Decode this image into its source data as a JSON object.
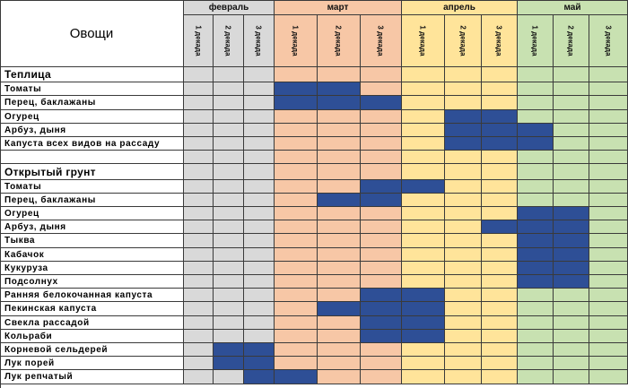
{
  "table": {
    "title": "Овощи",
    "months": [
      {
        "name": "февраль",
        "decades": [
          "1 декада",
          "2 декада",
          "3 декада"
        ],
        "color": "#d9d9d9"
      },
      {
        "name": "март",
        "decades": [
          "1 декада",
          "2 декада",
          "3 декада"
        ],
        "color": "#f7c7a6"
      },
      {
        "name": "апрель",
        "decades": [
          "1 декада",
          "2 декада",
          "3 декада"
        ],
        "color": "#ffe49a"
      },
      {
        "name": "май",
        "decades": [
          "1 декада",
          "2 декада",
          "3 декада"
        ],
        "color": "#c8e1b1"
      }
    ],
    "filled_color": "#2e4f96",
    "sections": [
      {
        "name": "Теплица",
        "rows": [
          {
            "label": "Томаты",
            "sowing": [
              false,
              false,
              false,
              true,
              true,
              false,
              false,
              false,
              false,
              false,
              false,
              false
            ]
          },
          {
            "label": "Перец, баклажаны",
            "sowing": [
              false,
              false,
              false,
              true,
              true,
              true,
              false,
              false,
              false,
              false,
              false,
              false
            ]
          },
          {
            "label": "Огурец",
            "sowing": [
              false,
              false,
              false,
              false,
              false,
              false,
              false,
              true,
              true,
              false,
              false,
              false
            ]
          },
          {
            "label": "Арбуз, дыня",
            "sowing": [
              false,
              false,
              false,
              false,
              false,
              false,
              false,
              true,
              true,
              true,
              false,
              false
            ]
          },
          {
            "label": "Капуста всех видов на рассаду",
            "sowing": [
              false,
              false,
              false,
              false,
              false,
              false,
              false,
              true,
              true,
              true,
              false,
              false
            ]
          }
        ]
      },
      {
        "name": "Открытый грунт",
        "rows": [
          {
            "label": "Томаты",
            "sowing": [
              false,
              false,
              false,
              false,
              false,
              true,
              true,
              false,
              false,
              false,
              false,
              false
            ]
          },
          {
            "label": "Перец, баклажаны",
            "sowing": [
              false,
              false,
              false,
              false,
              true,
              true,
              false,
              false,
              false,
              false,
              false,
              false
            ]
          },
          {
            "label": "Огурец",
            "sowing": [
              false,
              false,
              false,
              false,
              false,
              false,
              false,
              false,
              false,
              true,
              true,
              false
            ]
          },
          {
            "label": "Арбуз, дыня",
            "sowing": [
              false,
              false,
              false,
              false,
              false,
              false,
              false,
              false,
              true,
              true,
              true,
              false
            ]
          },
          {
            "label": "Тыква",
            "sowing": [
              false,
              false,
              false,
              false,
              false,
              false,
              false,
              false,
              false,
              true,
              true,
              false
            ]
          },
          {
            "label": "Кабачок",
            "sowing": [
              false,
              false,
              false,
              false,
              false,
              false,
              false,
              false,
              false,
              true,
              true,
              false
            ]
          },
          {
            "label": "Кукуруза",
            "sowing": [
              false,
              false,
              false,
              false,
              false,
              false,
              false,
              false,
              false,
              true,
              true,
              false
            ]
          },
          {
            "label": "Подсолнух",
            "sowing": [
              false,
              false,
              false,
              false,
              false,
              false,
              false,
              false,
              false,
              true,
              true,
              false
            ]
          },
          {
            "label": "Ранняя белокочанная капуста",
            "sowing": [
              false,
              false,
              false,
              false,
              false,
              true,
              true,
              false,
              false,
              false,
              false,
              false
            ]
          },
          {
            "label": "Пекинская капуста",
            "sowing": [
              false,
              false,
              false,
              false,
              true,
              true,
              true,
              false,
              false,
              false,
              false,
              false
            ]
          },
          {
            "label": "Свекла рассадой",
            "sowing": [
              false,
              false,
              false,
              false,
              false,
              true,
              true,
              false,
              false,
              false,
              false,
              false
            ]
          },
          {
            "label": "Кольраби",
            "sowing": [
              false,
              false,
              false,
              false,
              false,
              true,
              true,
              false,
              false,
              false,
              false,
              false
            ]
          },
          {
            "label": "Корневой сельдерей",
            "sowing": [
              false,
              true,
              true,
              false,
              false,
              false,
              false,
              false,
              false,
              false,
              false,
              false
            ]
          },
          {
            "label": "Лук порей",
            "sowing": [
              false,
              true,
              true,
              false,
              false,
              false,
              false,
              false,
              false,
              false,
              false,
              false
            ]
          },
          {
            "label": "Лук репчатый",
            "sowing": [
              false,
              false,
              true,
              true,
              false,
              false,
              false,
              false,
              false,
              false,
              false,
              false
            ]
          }
        ]
      }
    ]
  }
}
